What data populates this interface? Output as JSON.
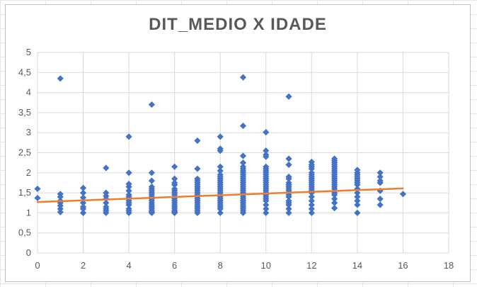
{
  "chart_data": {
    "type": "scatter",
    "title": "DIT_MEDIO X IDADE",
    "xlabel": "",
    "ylabel": "",
    "xlim": [
      0,
      18
    ],
    "ylim": [
      0,
      5
    ],
    "x_ticks": [
      "0",
      "2",
      "4",
      "6",
      "8",
      "10",
      "12",
      "14",
      "16",
      "18"
    ],
    "y_ticks": [
      "0",
      "0,5",
      "1",
      "1,5",
      "2",
      "2,5",
      "3",
      "3,5",
      "4",
      "4,5",
      "5"
    ],
    "grid": true,
    "legend": "none",
    "colors": {
      "points": "#4472C4",
      "trendline": "#ED7D31",
      "gridline": "#D9D9D9",
      "text": "#595959"
    },
    "series": [
      {
        "marker": "diamond",
        "x": [
          0,
          0,
          1,
          1,
          1,
          1,
          1,
          1,
          1,
          1,
          2,
          2,
          2,
          2,
          2,
          2,
          2,
          3,
          3,
          3,
          3,
          3,
          3,
          3,
          3,
          3,
          4,
          4,
          4,
          4,
          4,
          4,
          4,
          4,
          4,
          4,
          4,
          4,
          4,
          4,
          5,
          5,
          5,
          5,
          5,
          5,
          5,
          5,
          5,
          5,
          5,
          5,
          5,
          5,
          5,
          5,
          5,
          5,
          6,
          6,
          6,
          6,
          6,
          6,
          6,
          6,
          6,
          6,
          6,
          6,
          6,
          6,
          6,
          6,
          6,
          6,
          7,
          7,
          7,
          7,
          7,
          7,
          7,
          7,
          7,
          7,
          7,
          7,
          7,
          7,
          7,
          7,
          7,
          7,
          7,
          7,
          8,
          8,
          8,
          8,
          8,
          8,
          8,
          8,
          8,
          8,
          8,
          8,
          8,
          8,
          8,
          8,
          8,
          8,
          8,
          8,
          8,
          8,
          8,
          8,
          9,
          9,
          9,
          9,
          9,
          9,
          9,
          9,
          9,
          9,
          9,
          9,
          9,
          9,
          9,
          9,
          9,
          9,
          9,
          9,
          9,
          9,
          9,
          9,
          9,
          9,
          9,
          9,
          10,
          10,
          10,
          10,
          10,
          10,
          10,
          10,
          10,
          10,
          10,
          10,
          10,
          10,
          10,
          10,
          10,
          10,
          10,
          10,
          10,
          10,
          10,
          10,
          10,
          11,
          11,
          11,
          11,
          11,
          11,
          11,
          11,
          11,
          11,
          11,
          11,
          11,
          11,
          11,
          11,
          11,
          11,
          12,
          12,
          12,
          12,
          12,
          12,
          12,
          12,
          12,
          12,
          12,
          12,
          12,
          12,
          12,
          12,
          12,
          12,
          12,
          12,
          13,
          13,
          13,
          13,
          13,
          13,
          13,
          13,
          13,
          13,
          13,
          13,
          13,
          13,
          13,
          13,
          13,
          13,
          13,
          13,
          13,
          14,
          14,
          14,
          14,
          14,
          14,
          14,
          14,
          14,
          14,
          14,
          14,
          14,
          14,
          15,
          15,
          15,
          15,
          15,
          15,
          15,
          16
        ],
        "y": [
          1.6,
          1.37,
          4.35,
          1.47,
          1.4,
          1.3,
          1.25,
          1.18,
          1.1,
          1.02,
          1.62,
          1.5,
          1.38,
          1.25,
          1.15,
          1.1,
          1.0,
          2.12,
          1.5,
          1.42,
          1.35,
          1.25,
          1.15,
          1.1,
          1.05,
          1.0,
          2.9,
          2.0,
          1.72,
          1.65,
          1.55,
          1.45,
          1.4,
          1.35,
          1.3,
          1.25,
          1.2,
          1.1,
          1.05,
          1.0,
          3.7,
          2.0,
          1.8,
          1.65,
          1.6,
          1.55,
          1.5,
          1.45,
          1.4,
          1.35,
          1.3,
          1.25,
          1.2,
          1.15,
          1.1,
          1.05,
          1.02,
          1.0,
          2.15,
          1.85,
          1.75,
          1.7,
          1.6,
          1.55,
          1.5,
          1.45,
          1.4,
          1.35,
          1.3,
          1.25,
          1.2,
          1.15,
          1.1,
          1.05,
          1.02,
          1.0,
          2.8,
          2.1,
          1.85,
          1.8,
          1.75,
          1.7,
          1.65,
          1.6,
          1.55,
          1.5,
          1.45,
          1.4,
          1.35,
          1.3,
          1.25,
          1.2,
          1.15,
          1.1,
          1.05,
          1.0,
          2.9,
          2.6,
          2.55,
          2.15,
          2.05,
          1.95,
          1.9,
          1.85,
          1.8,
          1.75,
          1.7,
          1.65,
          1.6,
          1.55,
          1.5,
          1.45,
          1.4,
          1.35,
          1.3,
          1.25,
          1.2,
          1.15,
          1.1,
          1.0,
          4.38,
          3.17,
          2.42,
          2.25,
          2.15,
          2.1,
          2.05,
          2.0,
          1.95,
          1.9,
          1.85,
          1.8,
          1.75,
          1.7,
          1.65,
          1.6,
          1.55,
          1.5,
          1.45,
          1.4,
          1.35,
          1.3,
          1.25,
          1.2,
          1.15,
          1.1,
          1.05,
          1.0,
          3.01,
          2.55,
          2.45,
          2.4,
          2.15,
          2.1,
          2.05,
          2.0,
          1.95,
          1.9,
          1.85,
          1.8,
          1.75,
          1.7,
          1.65,
          1.6,
          1.55,
          1.5,
          1.45,
          1.4,
          1.35,
          1.3,
          1.2,
          1.1,
          1.0,
          3.9,
          2.35,
          2.2,
          1.9,
          1.85,
          1.75,
          1.7,
          1.65,
          1.6,
          1.55,
          1.5,
          1.45,
          1.4,
          1.3,
          1.25,
          1.2,
          1.1,
          1.0,
          2.27,
          2.2,
          2.15,
          2.1,
          2.0,
          1.95,
          1.9,
          1.85,
          1.8,
          1.75,
          1.7,
          1.65,
          1.6,
          1.55,
          1.5,
          1.4,
          1.3,
          1.2,
          1.1,
          1.0,
          2.35,
          2.3,
          2.25,
          2.2,
          2.15,
          2.1,
          2.05,
          2.0,
          1.95,
          1.9,
          1.85,
          1.8,
          1.75,
          1.7,
          1.65,
          1.6,
          1.5,
          1.45,
          1.35,
          1.25,
          1.12,
          2.07,
          2.0,
          1.95,
          1.9,
          1.85,
          1.8,
          1.75,
          1.7,
          1.6,
          1.5,
          1.4,
          1.3,
          1.2,
          1.0,
          2.0,
          1.9,
          1.8,
          1.55,
          1.35,
          1.2,
          1.75,
          1.47
        ]
      }
    ],
    "trendline": {
      "type": "linear",
      "x": [
        0,
        16
      ],
      "y": [
        1.27,
        1.61
      ]
    }
  }
}
